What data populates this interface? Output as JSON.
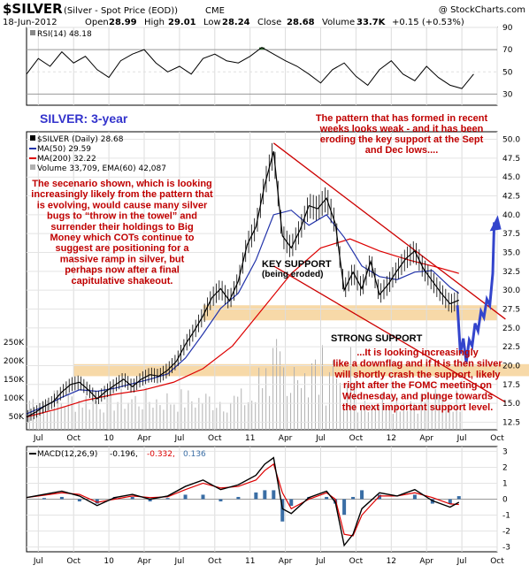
{
  "header": {
    "symbol": "$SILVER",
    "name": "(Silver - Spot Price (EOD))",
    "exchange": "CME",
    "watermark": "@ StockCharts.com",
    "date": "18-Jun-2012",
    "stats": [
      {
        "label": "Open",
        "value": "28.99"
      },
      {
        "label": "High",
        "value": "29.01"
      },
      {
        "label": "Low",
        "value": "28.24"
      },
      {
        "label": "Close",
        "value": "28.68"
      },
      {
        "label": "Volume",
        "value": "33.7K"
      },
      {
        "label": "Chg",
        "value": "+0.15 (+0.53%)"
      }
    ]
  },
  "rsi_legend": "RSI(14) 48.18",
  "main_legend": {
    "symbol": "$SILVER (Daily) 28.68",
    "ma50": "MA(50) 29.59",
    "ma200": "MA(200) 32.22",
    "volume": "Volume 33,709, EMA(60) 42,087"
  },
  "macd_legend": {
    "label": "MACD(12,26,9)",
    "v1": "-0.196,",
    "v2": "-0.332,",
    "v3": "0.136"
  },
  "annotations": {
    "title": "SILVER: 3-year",
    "pattern_lines": [
      "The pattern that has formed in recent",
      "weeks looks weak - and it has been",
      "eroding the key support at the Sept",
      "and Dec lows...."
    ],
    "scenario_lines": [
      "The secenario shown, which is looking",
      "increasingly likely from the pattern that",
      "is evolving, would cause many silver",
      "bugs to “throw in the towel” and",
      "surrender their holdings to Big",
      "Money which COTs continue to",
      "suggest are positioning for a",
      "massive ramp in silver, but",
      "perhaps now after a final",
      "capitulative shakeout."
    ],
    "key_support": "KEY SUPPORT",
    "key_support_sub": "(being eroded)",
    "strong_support": "STRONG SUPPORT",
    "downflag_lines": [
      "...It is looking increasingly",
      "like a downflag and if it is then silver",
      "will shortly crash the support, likely",
      "right after the FOMC meeting on",
      "Wednesday, and plunge towards",
      "the next important support level."
    ]
  },
  "colors": {
    "price": "#000000",
    "ma50": "#2233aa",
    "ma200": "#dd0000",
    "channel": "#cc0000",
    "support_band": "#f7d9a8",
    "projection": "#3344cc",
    "volume": "#b0b0b0",
    "macd": "#000000",
    "signal": "#dd0000",
    "histogram": "#3a6ea5",
    "rsi_fill_high": "#3a7a3a",
    "rsi_fill_low": "#c0c0c0"
  },
  "chart_data": [
    {
      "type": "line",
      "panel": "RSI(14)",
      "ylim": [
        20,
        90
      ],
      "yticks": [
        30,
        50,
        70,
        90
      ],
      "x_ticks": [
        "Jul",
        "Oct",
        "10",
        "Apr",
        "Jul",
        "Oct",
        "11",
        "Apr",
        "Jul",
        "Oct",
        "12",
        "Apr",
        "Jul",
        "Oct"
      ],
      "overbought": 70,
      "oversold": 30,
      "last": 48.18,
      "x": [
        0,
        4,
        8,
        12,
        16,
        20,
        24,
        28,
        32,
        36,
        40,
        44,
        48,
        52,
        56,
        60,
        64,
        68,
        72,
        76,
        80,
        84,
        88,
        92,
        96,
        100,
        104,
        108,
        112,
        116,
        120,
        124,
        128,
        132,
        136,
        140,
        144,
        148,
        152
      ],
      "values": [
        48,
        62,
        55,
        68,
        58,
        64,
        52,
        45,
        60,
        66,
        70,
        58,
        50,
        55,
        48,
        62,
        66,
        60,
        58,
        64,
        72,
        66,
        60,
        55,
        48,
        40,
        52,
        58,
        46,
        38,
        52,
        60,
        48,
        42,
        55,
        45,
        38,
        35,
        48
      ]
    },
    {
      "type": "line",
      "panel": "price",
      "title": "$SILVER (Daily) 28.68",
      "ylim": [
        11.5,
        51
      ],
      "yticks": [
        12.5,
        15.0,
        17.5,
        20.0,
        22.5,
        25.0,
        27.5,
        30.0,
        32.5,
        35.0,
        37.5,
        40.0,
        42.5,
        45.0,
        47.5,
        50.0
      ],
      "x_ticks": [
        "Jul",
        "Oct",
        "10",
        "Apr",
        "Jul",
        "Oct",
        "11",
        "Apr",
        "Jul",
        "Oct",
        "12",
        "Apr",
        "Jul",
        "Oct"
      ],
      "volume_ticks": [
        "50K",
        "100K",
        "150K",
        "200K",
        "250K"
      ],
      "series": [
        {
          "name": "$SILVER",
          "x": [
            0,
            3,
            6,
            9,
            12,
            15,
            18,
            21,
            24,
            27,
            30,
            33,
            36,
            39,
            42,
            45,
            48,
            51,
            54,
            57,
            60,
            63,
            66,
            69,
            72,
            75,
            78,
            81,
            84,
            87,
            90,
            93,
            96,
            99,
            102,
            105,
            108,
            111,
            114,
            117,
            120,
            123,
            126,
            129,
            132,
            135,
            138,
            141,
            144,
            147
          ],
          "values": [
            13.2,
            13.8,
            14.6,
            15.2,
            16.5,
            17.5,
            17.8,
            16.8,
            15.6,
            16.6,
            17.4,
            18.2,
            17.2,
            18.2,
            18.8,
            18.6,
            19.4,
            20.6,
            22.8,
            24.6,
            26.6,
            29.0,
            30.2,
            28.6,
            31.2,
            36.0,
            38.4,
            44.0,
            48.4,
            37.2,
            35.6,
            38.0,
            41.2,
            40.8,
            42.2,
            38.8,
            30.0,
            32.4,
            30.2,
            33.8,
            29.4,
            30.8,
            32.6,
            34.2,
            35.2,
            32.8,
            31.2,
            29.6,
            28.2,
            28.68
          ]
        },
        {
          "name": "MA(50)",
          "x": [
            0,
            6,
            12,
            18,
            24,
            30,
            36,
            42,
            48,
            54,
            60,
            66,
            72,
            78,
            84,
            90,
            96,
            102,
            108,
            114,
            120,
            126,
            132,
            138,
            144,
            147
          ],
          "values": [
            13.6,
            14.6,
            15.8,
            16.8,
            16.6,
            17.0,
            17.6,
            18.2,
            18.9,
            21.0,
            24.2,
            27.6,
            29.6,
            34.0,
            40.0,
            40.6,
            38.6,
            40.0,
            37.0,
            33.2,
            31.8,
            31.4,
            32.4,
            32.6,
            30.4,
            29.59
          ]
        },
        {
          "name": "MA(200)",
          "x": [
            0,
            10,
            20,
            30,
            40,
            50,
            60,
            70,
            80,
            90,
            100,
            110,
            120,
            130,
            140,
            147
          ],
          "values": [
            13.2,
            14.2,
            15.4,
            16.2,
            16.8,
            17.8,
            19.6,
            22.6,
            27.4,
            32.2,
            35.6,
            36.8,
            35.2,
            34.0,
            33.0,
            32.22
          ]
        }
      ],
      "channel_upper": [
        [
          84,
          49.5
        ],
        [
          152,
          27.8
        ]
      ],
      "channel_lower": [
        [
          84,
          33.2
        ],
        [
          152,
          16.8
        ]
      ],
      "key_support_band": [
        26.0,
        28.0
      ],
      "strong_support_band": [
        18.6,
        20.2
      ],
      "projection": {
        "x": [
          146.5,
          147.5,
          148.5,
          149.5,
          150.5,
          151.5,
          152.5,
          153.5,
          154.5,
          155.5,
          156.5,
          157.5,
          158.5,
          159
        ],
        "values": [
          28.0,
          21.6,
          23.6,
          20.4,
          23.4,
          22.6,
          25.6,
          24.6,
          27.2,
          26.4,
          28.8,
          28.0,
          32.2,
          39.0
        ]
      }
    },
    {
      "type": "line",
      "panel": "MACD(12,26,9)",
      "ylim": [
        -3.3,
        3.3
      ],
      "yticks": [
        -3,
        -2,
        -1,
        0,
        1,
        2,
        3
      ],
      "x_ticks": [
        "Jul",
        "Oct",
        "10",
        "Apr",
        "Jul",
        "Oct",
        "11",
        "Apr",
        "Jul",
        "Oct",
        "12",
        "Apr",
        "Jul",
        "Oct"
      ],
      "series": [
        {
          "name": "MACD",
          "x": [
            0,
            6,
            12,
            18,
            24,
            30,
            36,
            42,
            48,
            54,
            60,
            66,
            72,
            78,
            81,
            84,
            87,
            90,
            96,
            102,
            105,
            108,
            111,
            114,
            120,
            126,
            132,
            138,
            144,
            147
          ],
          "values": [
            0.1,
            0.3,
            0.5,
            0.2,
            -0.4,
            0.1,
            0.3,
            0.0,
            0.2,
            0.8,
            1.2,
            0.6,
            0.9,
            1.5,
            2.2,
            2.6,
            -0.6,
            -0.9,
            0.1,
            0.5,
            -0.2,
            -2.9,
            -2.2,
            -0.6,
            0.4,
            0.2,
            0.6,
            -0.1,
            -0.5,
            -0.196
          ]
        },
        {
          "name": "Signal",
          "x": [
            0,
            6,
            12,
            18,
            24,
            30,
            36,
            42,
            48,
            54,
            60,
            66,
            72,
            78,
            81,
            84,
            87,
            90,
            96,
            102,
            105,
            108,
            111,
            114,
            120,
            126,
            132,
            138,
            144,
            147
          ],
          "values": [
            0.1,
            0.25,
            0.4,
            0.3,
            -0.2,
            0.0,
            0.2,
            0.1,
            0.15,
            0.6,
            1.0,
            0.7,
            0.8,
            1.2,
            1.8,
            2.2,
            0.4,
            -0.6,
            0.0,
            0.4,
            0.0,
            -2.2,
            -2.3,
            -1.0,
            0.2,
            0.2,
            0.4,
            0.1,
            -0.3,
            -0.332
          ]
        }
      ],
      "histogram_last": 0.136
    }
  ]
}
